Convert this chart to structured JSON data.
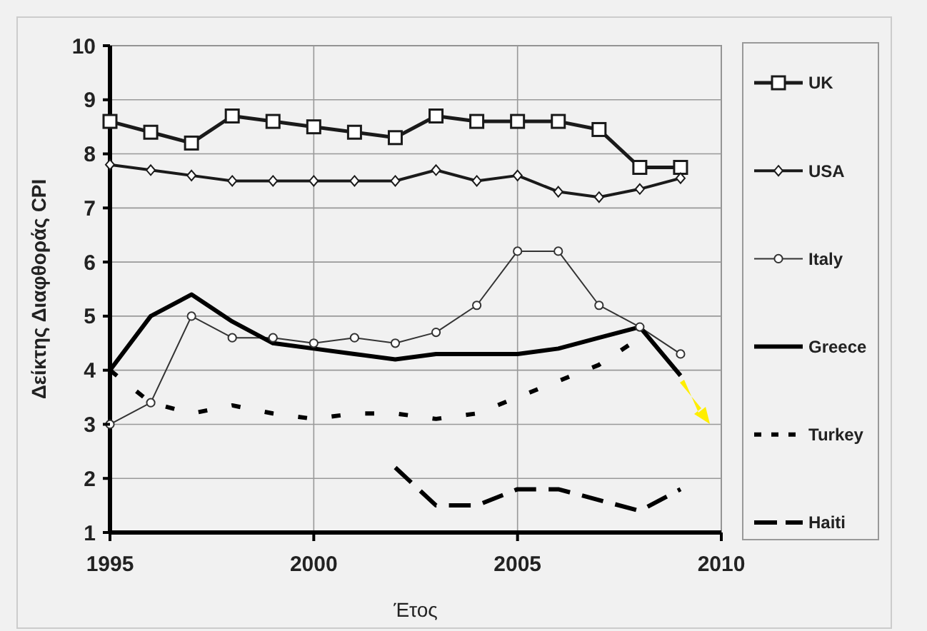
{
  "chart_data": {
    "type": "line",
    "xlabel": "Έτος",
    "ylabel": "Δείκτης Διαφθοράς CPI",
    "xlim": [
      1995,
      2010
    ],
    "xticks": [
      1995,
      2000,
      2005,
      2010
    ],
    "ylim": [
      1,
      10
    ],
    "yticks": [
      1,
      2,
      3,
      4,
      5,
      6,
      7,
      8,
      9,
      10
    ],
    "grid": true,
    "legend": "right",
    "series": [
      {
        "name": "UK",
        "color": "#1a1a1a",
        "marker": "square",
        "line_style": "solid",
        "x": [
          1995,
          1996,
          1997,
          1998,
          1999,
          2000,
          2001,
          2002,
          2003,
          2004,
          2005,
          2006,
          2007,
          2008,
          2009
        ],
        "values": [
          8.6,
          8.4,
          8.2,
          8.7,
          8.6,
          8.5,
          8.4,
          8.3,
          8.7,
          8.6,
          8.6,
          8.6,
          8.45,
          7.75,
          7.75
        ]
      },
      {
        "name": "USA",
        "color": "#1a1a1a",
        "marker": "diamond",
        "line_style": "solid",
        "x": [
          1995,
          1996,
          1997,
          1998,
          1999,
          2000,
          2001,
          2002,
          2003,
          2004,
          2005,
          2006,
          2007,
          2008,
          2009
        ],
        "values": [
          7.8,
          7.7,
          7.6,
          7.5,
          7.5,
          7.5,
          7.5,
          7.5,
          7.7,
          7.5,
          7.6,
          7.3,
          7.2,
          7.35,
          7.55
        ]
      },
      {
        "name": "Italy",
        "color": "#333333",
        "marker": "circle",
        "line_style": "solid",
        "x": [
          1995,
          1996,
          1997,
          1998,
          1999,
          2000,
          2001,
          2002,
          2003,
          2004,
          2005,
          2006,
          2007,
          2008,
          2009
        ],
        "values": [
          3.0,
          3.4,
          5.0,
          4.6,
          4.6,
          4.5,
          4.6,
          4.5,
          4.7,
          5.2,
          6.2,
          6.2,
          5.2,
          4.8,
          4.3
        ]
      },
      {
        "name": "Greece",
        "color": "#000000",
        "marker": "none",
        "line_style": "solid",
        "x": [
          1995,
          1996,
          1997,
          1998,
          1999,
          2000,
          2001,
          2002,
          2003,
          2004,
          2005,
          2006,
          2007,
          2008,
          2009
        ],
        "values": [
          4.0,
          5.0,
          5.4,
          4.9,
          4.5,
          4.4,
          4.3,
          4.2,
          4.3,
          4.3,
          4.3,
          4.4,
          4.6,
          4.8,
          3.9
        ]
      },
      {
        "name": "Turkey",
        "color": "#000000",
        "marker": "none",
        "line_style": "dotted",
        "x": [
          1995,
          1996,
          1997,
          1998,
          1999,
          2000,
          2001,
          2002,
          2003,
          2004,
          2005,
          2006,
          2007,
          2008
        ],
        "values": [
          4.0,
          3.4,
          3.2,
          3.35,
          3.2,
          3.1,
          3.2,
          3.2,
          3.1,
          3.2,
          3.5,
          3.8,
          4.1,
          4.6
        ]
      },
      {
        "name": "Haiti",
        "color": "#000000",
        "marker": "none",
        "line_style": "dashed",
        "x": [
          2002,
          2003,
          2004,
          2005,
          2006,
          2007,
          2008,
          2009
        ],
        "values": [
          2.2,
          1.5,
          1.5,
          1.8,
          1.8,
          1.6,
          1.4,
          1.8
        ]
      }
    ]
  }
}
